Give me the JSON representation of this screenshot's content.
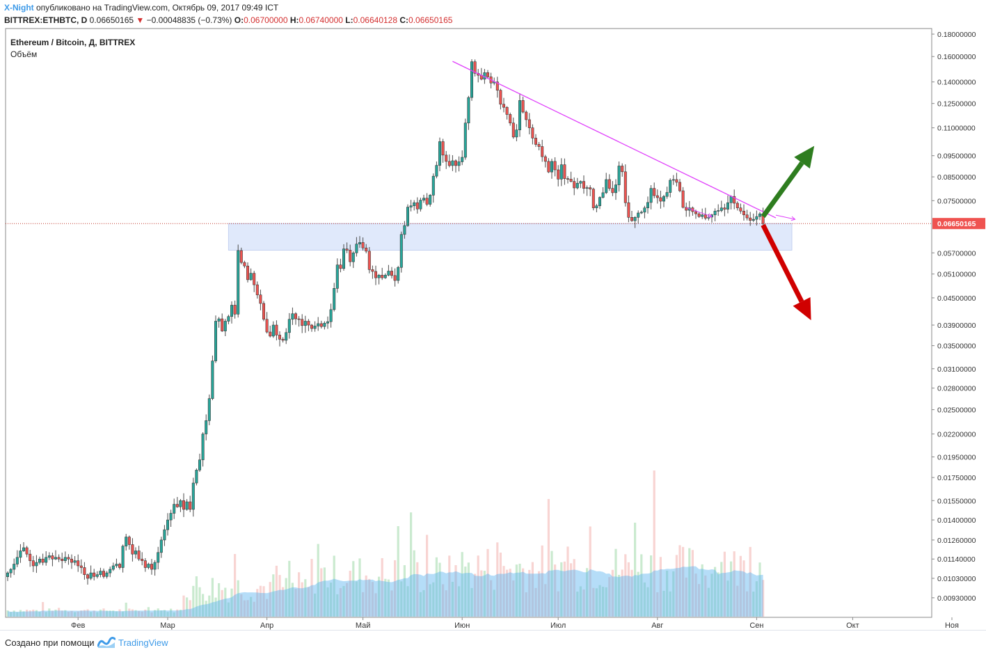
{
  "header": {
    "author": "X-Night",
    "published_text": "опубликовано на TradingView.com, Октябрь 09, 2017 09:49 ICT",
    "symbol": "BITTREX:ETHBTC, D",
    "last": "0.06650165",
    "change": "−0.00048835 (−0.73%)",
    "o_label": "O:",
    "o_value": "0.06700000",
    "h_label": "H:",
    "h_value": "0.06740000",
    "l_label": "L:",
    "l_value": "0.06640128",
    "c_label": "C:",
    "c_value": "0.06650165"
  },
  "footer": {
    "created_text": "Создано при помощи",
    "brand": "TradingView"
  },
  "colors": {
    "up": "#26a69a",
    "down": "#ef5350",
    "trendline": "#e040fb",
    "zone": "#dbe6fb",
    "price_label_bg": "#ef5350",
    "arrow_up": "#2e7d1f",
    "arrow_down": "#d00000",
    "volume_ma": "#5ab3f0"
  },
  "chart_data": {
    "type": "candlestick",
    "title": "Ethereum / Bitcoin, Д, BITTREX",
    "subtitle": "Объём",
    "scale": "log",
    "ylim": [
      0.0088,
      0.182
    ],
    "y_ticks": [
      "0.18000000",
      "0.16000000",
      "0.14000000",
      "0.12500000",
      "0.11000000",
      "0.09500000",
      "0.08500000",
      "0.07500000",
      "0.06650165",
      "0.05700000",
      "0.05100000",
      "0.04500000",
      "0.03900000",
      "0.03500000",
      "0.03100000",
      "0.02800000",
      "0.02500000",
      "0.02200000",
      "0.01950000",
      "0.01750000",
      "0.01550000",
      "0.01400000",
      "0.01260000",
      "0.01140000",
      "0.01030000",
      "0.00930000"
    ],
    "current_price": "0.06650165",
    "x_labels": [
      "Фев",
      "Мар",
      "Апр",
      "Май",
      "Июн",
      "Июл",
      "Авг",
      "Сен",
      "Окт",
      "Ноя"
    ],
    "candles_close": [
      0.0106,
      0.0108,
      0.0111,
      0.0115,
      0.0119,
      0.0121,
      0.0117,
      0.0113,
      0.011,
      0.0112,
      0.0114,
      0.0112,
      0.0115,
      0.0116,
      0.0114,
      0.0115,
      0.0114,
      0.0113,
      0.0115,
      0.0114,
      0.0112,
      0.0113,
      0.011,
      0.0109,
      0.0105,
      0.0103,
      0.0106,
      0.0104,
      0.0105,
      0.0107,
      0.0104,
      0.0106,
      0.0108,
      0.011,
      0.0111,
      0.0109,
      0.0122,
      0.0128,
      0.0123,
      0.0117,
      0.0119,
      0.0114,
      0.0113,
      0.0109,
      0.0111,
      0.0108,
      0.0112,
      0.0118,
      0.0126,
      0.0133,
      0.014,
      0.0145,
      0.0152,
      0.015,
      0.0155,
      0.0148,
      0.0154,
      0.0148,
      0.017,
      0.0182,
      0.0192,
      0.022,
      0.0236,
      0.0265,
      0.0323,
      0.0398,
      0.0403,
      0.0378,
      0.0398,
      0.0408,
      0.0433,
      0.0413,
      0.0577,
      0.0542,
      0.0532,
      0.0495,
      0.0512,
      0.0482,
      0.0457,
      0.0437,
      0.0402,
      0.0376,
      0.0368,
      0.039,
      0.037,
      0.0362,
      0.036,
      0.0375,
      0.0402,
      0.0414,
      0.0403,
      0.0402,
      0.0389,
      0.0398,
      0.039,
      0.0383,
      0.0388,
      0.0393,
      0.0387,
      0.0394,
      0.0397,
      0.0423,
      0.0473,
      0.0535,
      0.0525,
      0.0582,
      0.0578,
      0.0544,
      0.057,
      0.0597,
      0.0602,
      0.0585,
      0.0575,
      0.0522,
      0.0517,
      0.05,
      0.0507,
      0.05,
      0.0507,
      0.0518,
      0.0506,
      0.0493,
      0.0528,
      0.0628,
      0.0658,
      0.0725,
      0.073,
      0.0742,
      0.0718,
      0.0752,
      0.076,
      0.0736,
      0.0772,
      0.0853,
      0.0903,
      0.1023,
      0.0953,
      0.0922,
      0.0902,
      0.0925,
      0.0902,
      0.092,
      0.0942,
      0.1128,
      0.129,
      0.1557,
      0.1465,
      0.145,
      0.142,
      0.147,
      0.1438,
      0.1392,
      0.14,
      0.134,
      0.1245,
      0.1225,
      0.118,
      0.1128,
      0.1048,
      0.1088,
      0.127,
      0.1195,
      0.1148,
      0.11,
      0.1042,
      0.1008,
      0.0997,
      0.0945,
      0.0922,
      0.0872,
      0.0922,
      0.0882,
      0.084,
      0.0906,
      0.0842,
      0.084,
      0.083,
      0.0802,
      0.0822,
      0.083,
      0.08,
      0.0803,
      0.0797,
      0.0722,
      0.073,
      0.0763,
      0.0782,
      0.0838,
      0.08,
      0.0782,
      0.0815,
      0.09,
      0.0873,
      0.0742,
      0.0687,
      0.0675,
      0.0687,
      0.0703,
      0.0706,
      0.0722,
      0.0743,
      0.08,
      0.077,
      0.0762,
      0.0748,
      0.0767,
      0.0783,
      0.0835,
      0.0838,
      0.0826,
      0.079,
      0.0724,
      0.0713,
      0.0722,
      0.0708,
      0.07,
      0.069,
      0.0696,
      0.0684,
      0.0688,
      0.0696,
      0.071,
      0.0712,
      0.0722,
      0.0717,
      0.0742,
      0.0767,
      0.074,
      0.0722,
      0.071,
      0.0696,
      0.0685,
      0.0676,
      0.068,
      0.069,
      0.07,
      0.0665
    ]
  },
  "annotations": {
    "trendline": {
      "from_day": 139,
      "from_price": 0.156,
      "to_day": 240,
      "to_price": 0.0685
    },
    "zone": {
      "from_day": 69,
      "to_day": 245,
      "price_top": 0.0665,
      "price_bottom": 0.0578
    },
    "arrow_up": {
      "from_day": 236,
      "from_price": 0.069,
      "to_day": 252,
      "to_price": 0.1
    },
    "arrow_down": {
      "from_day": 236,
      "from_price": 0.066,
      "to_day": 251,
      "to_price": 0.04
    },
    "small_arrows": [
      {
        "from_day": 212,
        "from_price": 0.0723,
        "to_day": 220,
        "to_price": 0.069
      },
      {
        "from_day": 240,
        "from_price": 0.0695,
        "to_day": 246,
        "to_price": 0.068
      }
    ]
  }
}
